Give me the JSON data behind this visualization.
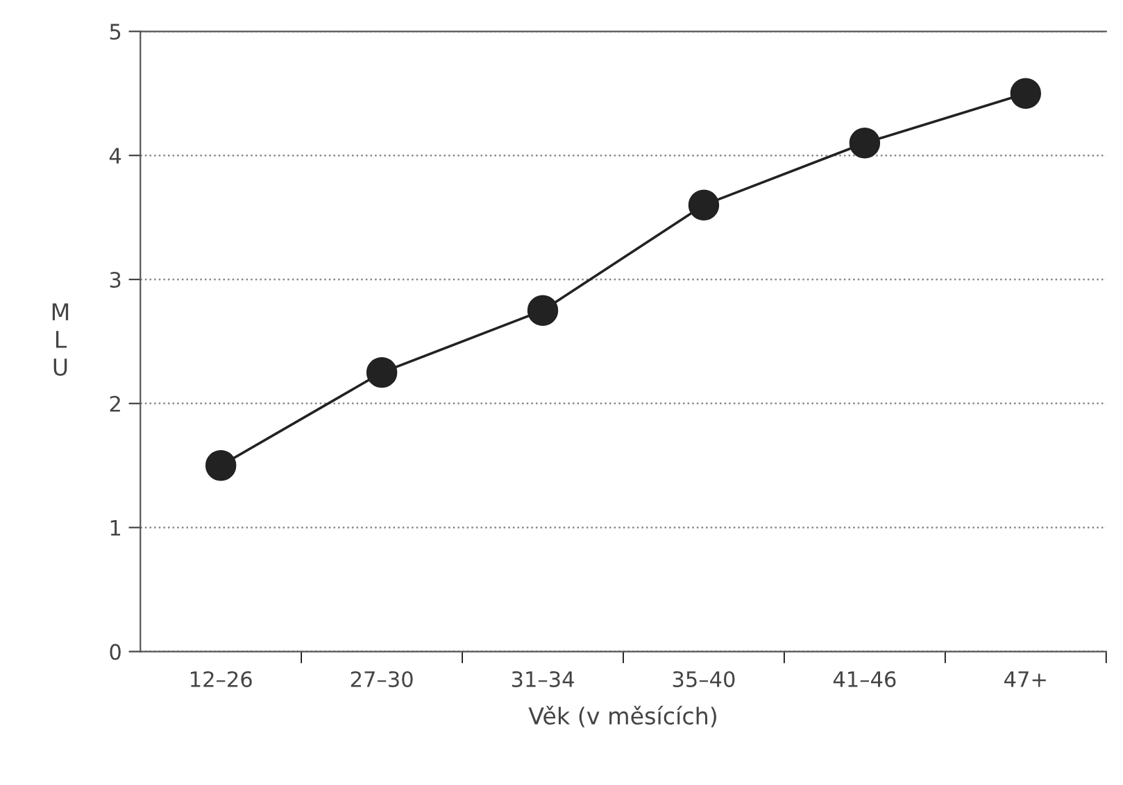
{
  "chart_data": {
    "type": "line",
    "xlabel": "Věk (v měsících)",
    "ylabel": "MLU",
    "categories": [
      "12–26",
      "27–30",
      "31–34",
      "35–40",
      "41–46",
      "47+"
    ],
    "series": [
      {
        "color": "#222222",
        "values": [
          1.5,
          2.25,
          2.75,
          3.6,
          4.1,
          4.5
        ]
      }
    ],
    "ylim": [
      0,
      5
    ],
    "yticks": [
      0,
      1,
      2,
      3,
      4,
      5
    ],
    "grid": "y",
    "marker": "circle",
    "line_style": "solid"
  }
}
